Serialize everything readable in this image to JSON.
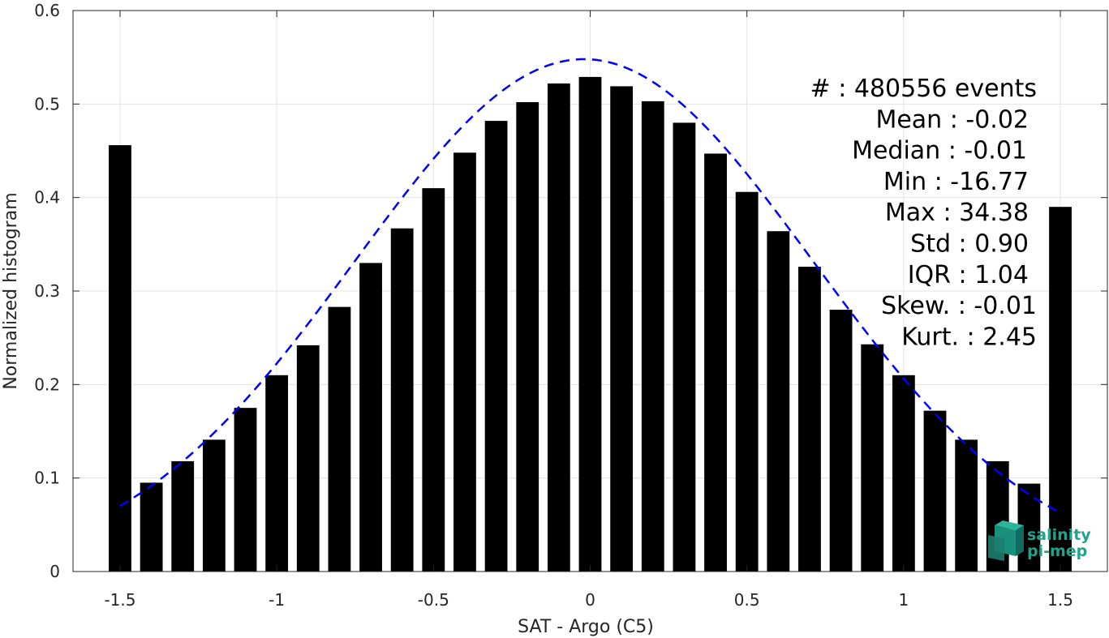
{
  "chart_data": {
    "type": "bar",
    "xlabel": "SAT - Argo (C5)",
    "ylabel": "Normalized histogram",
    "xlim": [
      -1.65,
      1.65
    ],
    "ylim": [
      0,
      0.6
    ],
    "grid": true,
    "bar_color": "#000000",
    "fit_color": "#0000ff",
    "bin_width": 0.1,
    "x_ticks": [
      -1.5,
      -1,
      -0.5,
      0,
      0.5,
      1,
      1.5
    ],
    "x_tick_labels": [
      "-1.5",
      "-1",
      "-0.5",
      "0",
      "0.5",
      "1",
      "1.5"
    ],
    "y_ticks": [
      0,
      0.1,
      0.2,
      0.3,
      0.4,
      0.5,
      0.6
    ],
    "y_tick_labels": [
      "0",
      "0.1",
      "0.2",
      "0.3",
      "0.4",
      "0.5",
      "0.6"
    ],
    "x": [
      -1.5,
      -1.4,
      -1.3,
      -1.2,
      -1.1,
      -1.0,
      -0.9,
      -0.8,
      -0.7,
      -0.6,
      -0.5,
      -0.4,
      -0.3,
      -0.2,
      -0.1,
      0.0,
      0.1,
      0.2,
      0.3,
      0.4,
      0.5,
      0.6,
      0.7,
      0.8,
      0.9,
      1.0,
      1.1,
      1.2,
      1.3,
      1.4,
      1.5
    ],
    "values": [
      0.456,
      0.095,
      0.118,
      0.141,
      0.175,
      0.21,
      0.242,
      0.283,
      0.33,
      0.367,
      0.41,
      0.448,
      0.482,
      0.502,
      0.522,
      0.529,
      0.519,
      0.503,
      0.48,
      0.447,
      0.406,
      0.364,
      0.326,
      0.28,
      0.243,
      0.21,
      0.172,
      0.141,
      0.118,
      0.094,
      0.39
    ],
    "fit": {
      "type": "gaussian",
      "style": "dashed",
      "x_range": [
        -1.5,
        1.5
      ],
      "mean": -0.02,
      "std": 0.73,
      "peak": 0.548
    },
    "stats": [
      {
        "label": "#  : 480556 events"
      },
      {
        "label": "Mean : -0.02"
      },
      {
        "label": "Median : -0.01"
      },
      {
        "label": "Min : -16.77"
      },
      {
        "label": "Max : 34.38"
      },
      {
        "label": "Std : 0.90"
      },
      {
        "label": "IQR : 1.04"
      },
      {
        "label": "Skew. : -0.01"
      },
      {
        "label": "Kurt. : 2.45"
      }
    ]
  },
  "logo": {
    "line1": "salinity",
    "line2": "pi-mep",
    "color": "#1fa38a"
  }
}
